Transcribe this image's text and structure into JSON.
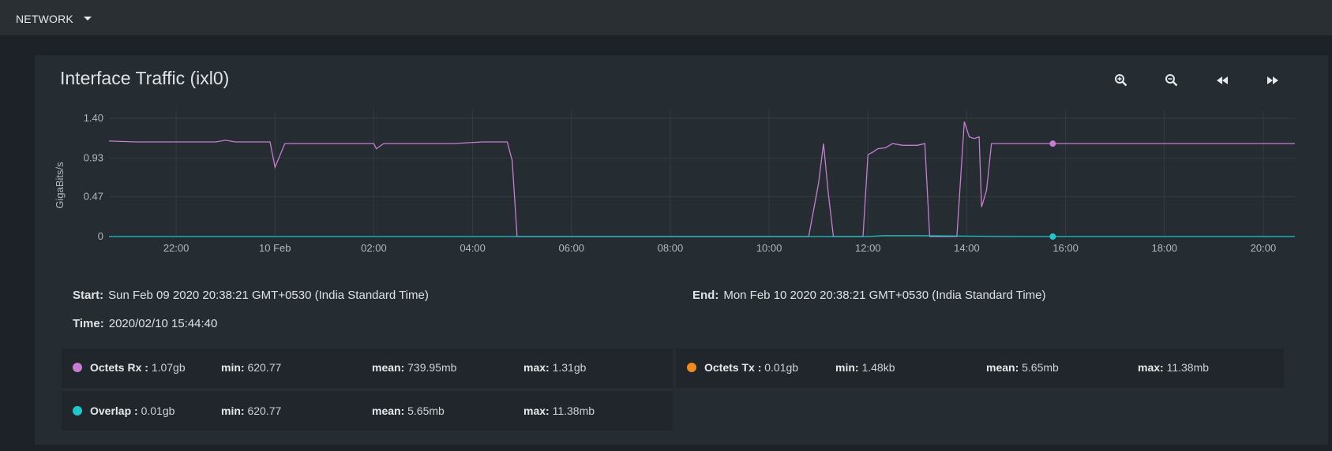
{
  "topbar": {
    "nav_label": "NETWORK"
  },
  "card": {
    "title": "Interface Traffic (ixl0)",
    "toolbar": {
      "zoom_in": "zoom-in-icon",
      "zoom_out": "zoom-out-icon",
      "rewind": "rewind-icon",
      "forward": "fast-forward-icon"
    }
  },
  "info": {
    "start_label": "Start:",
    "start_value": "Sun Feb 09 2020 20:38:21 GMT+0530 (India Standard Time)",
    "end_label": "End:",
    "end_value": "Mon Feb 10 2020 20:38:21 GMT+0530 (India Standard Time)",
    "time_label": "Time:",
    "time_value": "2020/02/10 15:44:40"
  },
  "legend": {
    "rx": {
      "name": "Octets Rx :",
      "value": "1.07gb",
      "min_label": "min:",
      "min": "620.77",
      "mean_label": "mean:",
      "mean": "739.95mb",
      "max_label": "max:",
      "max": "1.31gb",
      "color": "#c77dd1"
    },
    "tx": {
      "name": "Octets Tx :",
      "value": "0.01gb",
      "min_label": "min:",
      "min": "1.48kb",
      "mean_label": "mean:",
      "mean": "5.65mb",
      "max_label": "max:",
      "max": "11.38mb",
      "color": "#f08c1c"
    },
    "overlap": {
      "name": "Overlap :",
      "value": "0.01gb",
      "min_label": "min:",
      "min": "620.77",
      "mean_label": "mean:",
      "mean": "5.65mb",
      "max_label": "max:",
      "max": "11.38mb",
      "color": "#1ec9c9"
    }
  },
  "chart_data": {
    "type": "line",
    "title": "",
    "ylabel": "GigaBits/s",
    "ylim": [
      0,
      1.4
    ],
    "y_ticks": [
      "0",
      "0.47",
      "0.93",
      "1.40"
    ],
    "y_tick_values": [
      0,
      0.47,
      0.93,
      1.4
    ],
    "xlim_hours": [
      20.64,
      44.64
    ],
    "x_ticks": [
      {
        "label": "22:00",
        "h": 22
      },
      {
        "label": "10 Feb",
        "h": 24
      },
      {
        "label": "02:00",
        "h": 26
      },
      {
        "label": "04:00",
        "h": 28
      },
      {
        "label": "06:00",
        "h": 30
      },
      {
        "label": "08:00",
        "h": 32
      },
      {
        "label": "10:00",
        "h": 34
      },
      {
        "label": "12:00",
        "h": 36
      },
      {
        "label": "14:00",
        "h": 38
      },
      {
        "label": "16:00",
        "h": 40
      },
      {
        "label": "18:00",
        "h": 42
      },
      {
        "label": "20:00",
        "h": 44
      }
    ],
    "grid": true,
    "cursor_h": 39.74,
    "series": [
      {
        "name": "Octets Rx",
        "color": "#c77dd1",
        "points": [
          [
            20.64,
            1.13
          ],
          [
            21.2,
            1.12
          ],
          [
            22.0,
            1.12
          ],
          [
            22.8,
            1.12
          ],
          [
            23.0,
            1.14
          ],
          [
            23.2,
            1.12
          ],
          [
            23.6,
            1.12
          ],
          [
            23.9,
            1.12
          ],
          [
            24.0,
            0.82
          ],
          [
            24.2,
            1.1
          ],
          [
            24.8,
            1.1
          ],
          [
            25.5,
            1.1
          ],
          [
            26.0,
            1.1
          ],
          [
            26.05,
            1.04
          ],
          [
            26.2,
            1.1
          ],
          [
            27.0,
            1.1
          ],
          [
            27.6,
            1.1
          ],
          [
            28.2,
            1.12
          ],
          [
            28.7,
            1.12
          ],
          [
            28.8,
            0.9
          ],
          [
            28.9,
            0.0
          ],
          [
            30.0,
            0.0
          ],
          [
            32.0,
            0.0
          ],
          [
            34.0,
            0.0
          ],
          [
            34.8,
            0.0
          ],
          [
            35.0,
            0.63
          ],
          [
            35.1,
            1.1
          ],
          [
            35.2,
            0.5
          ],
          [
            35.3,
            0.0
          ],
          [
            35.9,
            0.0
          ],
          [
            36.0,
            0.97
          ],
          [
            36.1,
            1.0
          ],
          [
            36.2,
            1.04
          ],
          [
            36.35,
            1.05
          ],
          [
            36.5,
            1.1
          ],
          [
            36.7,
            1.08
          ],
          [
            37.0,
            1.08
          ],
          [
            37.15,
            1.1
          ],
          [
            37.25,
            0.0
          ],
          [
            37.8,
            0.0
          ],
          [
            37.95,
            1.36
          ],
          [
            38.05,
            1.18
          ],
          [
            38.15,
            1.16
          ],
          [
            38.25,
            1.18
          ],
          [
            38.3,
            0.35
          ],
          [
            38.4,
            0.55
          ],
          [
            38.5,
            1.1
          ],
          [
            39.0,
            1.1
          ],
          [
            39.74,
            1.1
          ],
          [
            40.5,
            1.1
          ],
          [
            41.5,
            1.1
          ],
          [
            42.5,
            1.1
          ],
          [
            43.5,
            1.1
          ],
          [
            44.64,
            1.1
          ]
        ]
      },
      {
        "name": "Overlap",
        "color": "#1ec9c9",
        "points": [
          [
            20.64,
            0.0
          ],
          [
            24.0,
            0.0
          ],
          [
            26.0,
            0.0
          ],
          [
            28.0,
            0.0
          ],
          [
            28.7,
            0.0
          ],
          [
            30.0,
            0.0
          ],
          [
            36.0,
            0.0
          ],
          [
            36.3,
            0.01
          ],
          [
            37.0,
            0.01
          ],
          [
            39.0,
            0.0
          ],
          [
            42.0,
            0.0
          ],
          [
            44.64,
            0.0
          ]
        ]
      }
    ]
  }
}
